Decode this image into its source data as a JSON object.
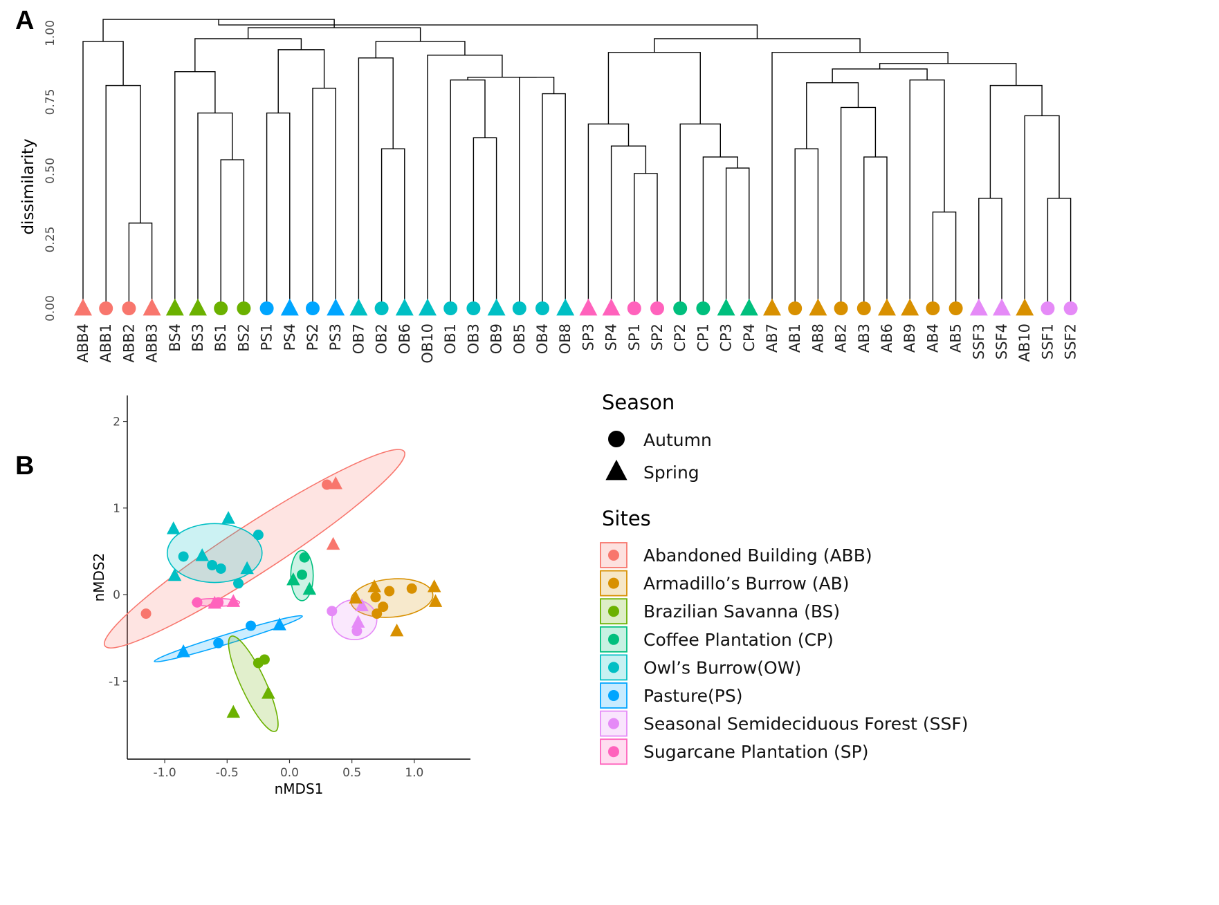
{
  "panels": {
    "a_label": "A",
    "b_label": "B"
  },
  "colors": {
    "ABB": "#F8766D",
    "AB": "#D89000",
    "BS": "#6BB100",
    "CP": "#00BF7D",
    "OW": "#00BFC4",
    "PS": "#00A5FF",
    "SSF": "#E58AF7",
    "SP": "#FF62BC"
  },
  "chart_data": [
    {
      "type": "dendrogram",
      "title": "",
      "ylabel": "dissimilarity",
      "ylim": [
        0,
        1.05
      ],
      "yticks": [
        "0.00",
        "0.25",
        "0.50",
        "0.75",
        "1.00"
      ],
      "leaves": [
        {
          "label": "ABB4",
          "site": "ABB",
          "season": "Spring"
        },
        {
          "label": "ABB1",
          "site": "ABB",
          "season": "Autumn"
        },
        {
          "label": "ABB2",
          "site": "ABB",
          "season": "Autumn"
        },
        {
          "label": "ABB3",
          "site": "ABB",
          "season": "Spring"
        },
        {
          "label": "BS4",
          "site": "BS",
          "season": "Spring"
        },
        {
          "label": "BS3",
          "site": "BS",
          "season": "Spring"
        },
        {
          "label": "BS1",
          "site": "BS",
          "season": "Autumn"
        },
        {
          "label": "BS2",
          "site": "BS",
          "season": "Autumn"
        },
        {
          "label": "PS1",
          "site": "PS",
          "season": "Autumn"
        },
        {
          "label": "PS4",
          "site": "PS",
          "season": "Spring"
        },
        {
          "label": "PS2",
          "site": "PS",
          "season": "Autumn"
        },
        {
          "label": "PS3",
          "site": "PS",
          "season": "Spring"
        },
        {
          "label": "OB7",
          "site": "OW",
          "season": "Spring"
        },
        {
          "label": "OB2",
          "site": "OW",
          "season": "Autumn"
        },
        {
          "label": "OB6",
          "site": "OW",
          "season": "Spring"
        },
        {
          "label": "OB10",
          "site": "OW",
          "season": "Spring"
        },
        {
          "label": "OB1",
          "site": "OW",
          "season": "Autumn"
        },
        {
          "label": "OB3",
          "site": "OW",
          "season": "Autumn"
        },
        {
          "label": "OB9",
          "site": "OW",
          "season": "Spring"
        },
        {
          "label": "OB5",
          "site": "OW",
          "season": "Autumn"
        },
        {
          "label": "OB4",
          "site": "OW",
          "season": "Autumn"
        },
        {
          "label": "OB8",
          "site": "OW",
          "season": "Spring"
        },
        {
          "label": "SP3",
          "site": "SP",
          "season": "Spring"
        },
        {
          "label": "SP4",
          "site": "SP",
          "season": "Spring"
        },
        {
          "label": "SP1",
          "site": "SP",
          "season": "Autumn"
        },
        {
          "label": "SP2",
          "site": "SP",
          "season": "Autumn"
        },
        {
          "label": "CP2",
          "site": "CP",
          "season": "Autumn"
        },
        {
          "label": "CP1",
          "site": "CP",
          "season": "Autumn"
        },
        {
          "label": "CP3",
          "site": "CP",
          "season": "Spring"
        },
        {
          "label": "CP4",
          "site": "CP",
          "season": "Spring"
        },
        {
          "label": "AB7",
          "site": "AB",
          "season": "Spring"
        },
        {
          "label": "AB1",
          "site": "AB",
          "season": "Autumn"
        },
        {
          "label": "AB8",
          "site": "AB",
          "season": "Spring"
        },
        {
          "label": "AB2",
          "site": "AB",
          "season": "Autumn"
        },
        {
          "label": "AB3",
          "site": "AB",
          "season": "Autumn"
        },
        {
          "label": "AB6",
          "site": "AB",
          "season": "Spring"
        },
        {
          "label": "AB9",
          "site": "AB",
          "season": "Spring"
        },
        {
          "label": "AB4",
          "site": "AB",
          "season": "Autumn"
        },
        {
          "label": "AB5",
          "site": "AB",
          "season": "Autumn"
        },
        {
          "label": "SSF3",
          "site": "SSF",
          "season": "Spring"
        },
        {
          "label": "SSF4",
          "site": "SSF",
          "season": "Spring"
        },
        {
          "label": "AB10",
          "site": "AB",
          "season": "Spring"
        },
        {
          "label": "SSF1",
          "site": "SSF",
          "season": "Autumn"
        },
        {
          "label": "SSF2",
          "site": "SSF",
          "season": "Autumn"
        }
      ],
      "merges": [
        {
          "id": "n1",
          "a": "ABB2",
          "b": "ABB3",
          "h": 0.31
        },
        {
          "id": "n2",
          "a": "ABB1",
          "b": "n1",
          "h": 0.81
        },
        {
          "id": "n3",
          "a": "ABB4",
          "b": "n2",
          "h": 0.97
        },
        {
          "id": "n4",
          "a": "BS1",
          "b": "BS2",
          "h": 0.54
        },
        {
          "id": "n5",
          "a": "BS3",
          "b": "n4",
          "h": 0.71
        },
        {
          "id": "n6",
          "a": "BS4",
          "b": "n5",
          "h": 0.86
        },
        {
          "id": "n7",
          "a": "PS1",
          "b": "PS4",
          "h": 0.71
        },
        {
          "id": "n8",
          "a": "PS2",
          "b": "PS3",
          "h": 0.8
        },
        {
          "id": "n9",
          "a": "n7",
          "b": "n8",
          "h": 0.94
        },
        {
          "id": "n10",
          "a": "n6",
          "b": "n9",
          "h": 0.98
        },
        {
          "id": "n11",
          "a": "OB2",
          "b": "OB6",
          "h": 0.58
        },
        {
          "id": "n12",
          "a": "OB7",
          "b": "n11",
          "h": 0.91
        },
        {
          "id": "n13",
          "a": "OB3",
          "b": "OB9",
          "h": 0.62
        },
        {
          "id": "n14",
          "a": "OB1",
          "b": "n13",
          "h": 0.83
        },
        {
          "id": "n15",
          "a": "OB4",
          "b": "OB8",
          "h": 0.78
        },
        {
          "id": "n16",
          "a": "OB5",
          "b": "n15",
          "h": 0.84
        },
        {
          "id": "n17",
          "a": "n14",
          "b": "n16",
          "h": 0.84
        },
        {
          "id": "n18",
          "a": "OB10",
          "b": "n17",
          "h": 0.92
        },
        {
          "id": "n19",
          "a": "n12",
          "b": "n18",
          "h": 0.97
        },
        {
          "id": "n20",
          "a": "n10",
          "b": "n19",
          "h": 1.02
        },
        {
          "id": "n21",
          "a": "n3",
          "b": "n20",
          "h": 1.05
        },
        {
          "id": "n22",
          "a": "SP1",
          "b": "SP2",
          "h": 0.49
        },
        {
          "id": "n23",
          "a": "SP4",
          "b": "n22",
          "h": 0.59
        },
        {
          "id": "n24",
          "a": "SP3",
          "b": "n23",
          "h": 0.67
        },
        {
          "id": "n25",
          "a": "CP3",
          "b": "CP4",
          "h": 0.51
        },
        {
          "id": "n26",
          "a": "CP1",
          "b": "n25",
          "h": 0.55
        },
        {
          "id": "n27",
          "a": "CP2",
          "b": "n26",
          "h": 0.67
        },
        {
          "id": "n28",
          "a": "n24",
          "b": "n27",
          "h": 0.93
        },
        {
          "id": "n29",
          "a": "AB1",
          "b": "AB8",
          "h": 0.58
        },
        {
          "id": "n30",
          "a": "AB3",
          "b": "AB6",
          "h": 0.55
        },
        {
          "id": "n31",
          "a": "AB2",
          "b": "n30",
          "h": 0.73
        },
        {
          "id": "n32",
          "a": "n29",
          "b": "n31",
          "h": 0.82
        },
        {
          "id": "n33",
          "a": "AB4",
          "b": "AB5",
          "h": 0.35
        },
        {
          "id": "n34",
          "a": "AB9",
          "b": "n33",
          "h": 0.83
        },
        {
          "id": "n35",
          "a": "n32",
          "b": "n34",
          "h": 0.87
        },
        {
          "id": "n36",
          "a": "SSF3",
          "b": "SSF4",
          "h": 0.4
        },
        {
          "id": "n37",
          "a": "SSF1",
          "b": "SSF2",
          "h": 0.4
        },
        {
          "id": "n38",
          "a": "AB10",
          "b": "n37",
          "h": 0.7
        },
        {
          "id": "n39",
          "a": "n36",
          "b": "n38",
          "h": 0.81
        },
        {
          "id": "n40",
          "a": "n35",
          "b": "n39",
          "h": 0.89
        },
        {
          "id": "n41",
          "a": "AB7",
          "b": "n40",
          "h": 0.93
        },
        {
          "id": "n42",
          "a": "n28",
          "b": "n41",
          "h": 0.98
        },
        {
          "id": "n43",
          "a": "n21",
          "b": "n42",
          "h": 1.03
        }
      ]
    },
    {
      "type": "scatter",
      "title": "",
      "xlabel": "nMDS1",
      "ylabel": "nMDS2",
      "xlim": [
        -1.3,
        1.45
      ],
      "ylim": [
        -1.9,
        2.3
      ],
      "xticks": [
        -1.0,
        -0.5,
        0.0,
        0.5,
        1.0
      ],
      "xtick_labels": [
        "-1.0",
        "-0.5",
        "0.0",
        "0.5",
        "1.0"
      ],
      "yticks": [
        -1,
        0,
        1,
        2
      ],
      "ytick_labels": [
        "-1",
        "0",
        "1",
        "2"
      ],
      "points": [
        {
          "site": "ABB",
          "season": "Autumn",
          "x": 0.3,
          "y": 1.27
        },
        {
          "site": "ABB",
          "season": "Spring",
          "x": 0.37,
          "y": 1.28
        },
        {
          "site": "ABB",
          "season": "Spring",
          "x": 0.35,
          "y": 0.58
        },
        {
          "site": "ABB",
          "season": "Autumn",
          "x": -1.15,
          "y": -0.22
        },
        {
          "site": "OW",
          "season": "Spring",
          "x": -0.93,
          "y": 0.76
        },
        {
          "site": "OW",
          "season": "Spring",
          "x": -0.49,
          "y": 0.88
        },
        {
          "site": "OW",
          "season": "Autumn",
          "x": -0.25,
          "y": 0.69
        },
        {
          "site": "OW",
          "season": "Autumn",
          "x": -0.85,
          "y": 0.44
        },
        {
          "site": "OW",
          "season": "Spring",
          "x": -0.7,
          "y": 0.45
        },
        {
          "site": "OW",
          "season": "Autumn",
          "x": -0.62,
          "y": 0.34
        },
        {
          "site": "OW",
          "season": "Autumn",
          "x": -0.55,
          "y": 0.3
        },
        {
          "site": "OW",
          "season": "Spring",
          "x": -0.34,
          "y": 0.3
        },
        {
          "site": "OW",
          "season": "Spring",
          "x": -0.92,
          "y": 0.22
        },
        {
          "site": "OW",
          "season": "Autumn",
          "x": -0.41,
          "y": 0.13
        },
        {
          "site": "SP",
          "season": "Autumn",
          "x": -0.74,
          "y": -0.09
        },
        {
          "site": "SP",
          "season": "Autumn",
          "x": -0.57,
          "y": -0.09
        },
        {
          "site": "SP",
          "season": "Spring",
          "x": -0.6,
          "y": -0.1
        },
        {
          "site": "SP",
          "season": "Spring",
          "x": -0.45,
          "y": -0.08
        },
        {
          "site": "CP",
          "season": "Autumn",
          "x": 0.12,
          "y": 0.43
        },
        {
          "site": "CP",
          "season": "Autumn",
          "x": 0.1,
          "y": 0.23
        },
        {
          "site": "CP",
          "season": "Spring",
          "x": 0.03,
          "y": 0.17
        },
        {
          "site": "CP",
          "season": "Spring",
          "x": 0.16,
          "y": 0.06
        },
        {
          "site": "PS",
          "season": "Spring",
          "x": -0.08,
          "y": -0.35
        },
        {
          "site": "PS",
          "season": "Autumn",
          "x": -0.31,
          "y": -0.36
        },
        {
          "site": "PS",
          "season": "Autumn",
          "x": -0.57,
          "y": -0.56
        },
        {
          "site": "PS",
          "season": "Spring",
          "x": -0.85,
          "y": -0.66
        },
        {
          "site": "BS",
          "season": "Autumn",
          "x": -0.2,
          "y": -0.75
        },
        {
          "site": "BS",
          "season": "Autumn",
          "x": -0.25,
          "y": -0.79
        },
        {
          "site": "BS",
          "season": "Spring",
          "x": -0.17,
          "y": -1.14
        },
        {
          "site": "BS",
          "season": "Spring",
          "x": -0.45,
          "y": -1.36
        },
        {
          "site": "SSF",
          "season": "Autumn",
          "x": 0.34,
          "y": -0.19
        },
        {
          "site": "SSF",
          "season": "Spring",
          "x": 0.55,
          "y": -0.32
        },
        {
          "site": "SSF",
          "season": "Autumn",
          "x": 0.54,
          "y": -0.42
        },
        {
          "site": "SSF",
          "season": "Spring",
          "x": 0.58,
          "y": -0.13
        },
        {
          "site": "AB",
          "season": "Spring",
          "x": 0.68,
          "y": 0.09
        },
        {
          "site": "AB",
          "season": "Autumn",
          "x": 0.8,
          "y": 0.04
        },
        {
          "site": "AB",
          "season": "Autumn",
          "x": 0.98,
          "y": 0.07
        },
        {
          "site": "AB",
          "season": "Spring",
          "x": 1.16,
          "y": 0.09
        },
        {
          "site": "AB",
          "season": "Spring",
          "x": 0.53,
          "y": -0.04
        },
        {
          "site": "AB",
          "season": "Autumn",
          "x": 0.69,
          "y": -0.03
        },
        {
          "site": "AB",
          "season": "Autumn",
          "x": 0.75,
          "y": -0.14
        },
        {
          "site": "AB",
          "season": "Spring",
          "x": 1.17,
          "y": -0.08
        },
        {
          "site": "AB",
          "season": "Autumn",
          "x": 0.7,
          "y": -0.22
        },
        {
          "site": "AB",
          "season": "Spring",
          "x": 0.86,
          "y": -0.42
        }
      ],
      "ellipses": [
        {
          "site": "ABB",
          "cx": -0.28,
          "cy": 0.53,
          "rx": 1.43,
          "ry": 0.28,
          "angle_deg": 33
        },
        {
          "site": "OW",
          "cx": -0.6,
          "cy": 0.48,
          "rx": 0.38,
          "ry": 0.34,
          "angle_deg": 0
        },
        {
          "site": "CP",
          "cx": 0.1,
          "cy": 0.22,
          "rx": 0.09,
          "ry": 0.29,
          "angle_deg": 0
        },
        {
          "site": "SP",
          "cx": -0.59,
          "cy": -0.09,
          "rx": 0.19,
          "ry": 0.045,
          "angle_deg": 0
        },
        {
          "site": "AB",
          "cx": 0.82,
          "cy": -0.04,
          "rx": 0.33,
          "ry": 0.22,
          "angle_deg": 5
        },
        {
          "site": "SSF",
          "cx": 0.52,
          "cy": -0.29,
          "rx": 0.18,
          "ry": 0.23,
          "angle_deg": 0
        },
        {
          "site": "PS",
          "cx": -0.49,
          "cy": -0.51,
          "rx": 0.62,
          "ry": 0.055,
          "angle_deg": 17
        },
        {
          "site": "BS",
          "cx": -0.29,
          "cy": -1.03,
          "rx": 0.42,
          "ry": 0.14,
          "angle_deg": -65
        }
      ]
    }
  ],
  "legend": {
    "season_title": "Season",
    "seasons": [
      {
        "key": "Autumn",
        "label": "Autumn"
      },
      {
        "key": "Spring",
        "label": "Spring"
      }
    ],
    "sites_title": "Sites",
    "sites": [
      {
        "key": "ABB",
        "label": "Abandoned Building (ABB)"
      },
      {
        "key": "AB",
        "label": "Armadillo’s Burrow (AB)"
      },
      {
        "key": "BS",
        "label": "Brazilian Savanna (BS)"
      },
      {
        "key": "CP",
        "label": "Coffee Plantation (CP)"
      },
      {
        "key": "OW",
        "label": "Owl’s Burrow(OW)"
      },
      {
        "key": "PS",
        "label": "Pasture(PS)"
      },
      {
        "key": "SSF",
        "label": "Seasonal Semideciduous Forest (SSF)"
      },
      {
        "key": "SP",
        "label": "Sugarcane Plantation (SP)"
      }
    ]
  }
}
